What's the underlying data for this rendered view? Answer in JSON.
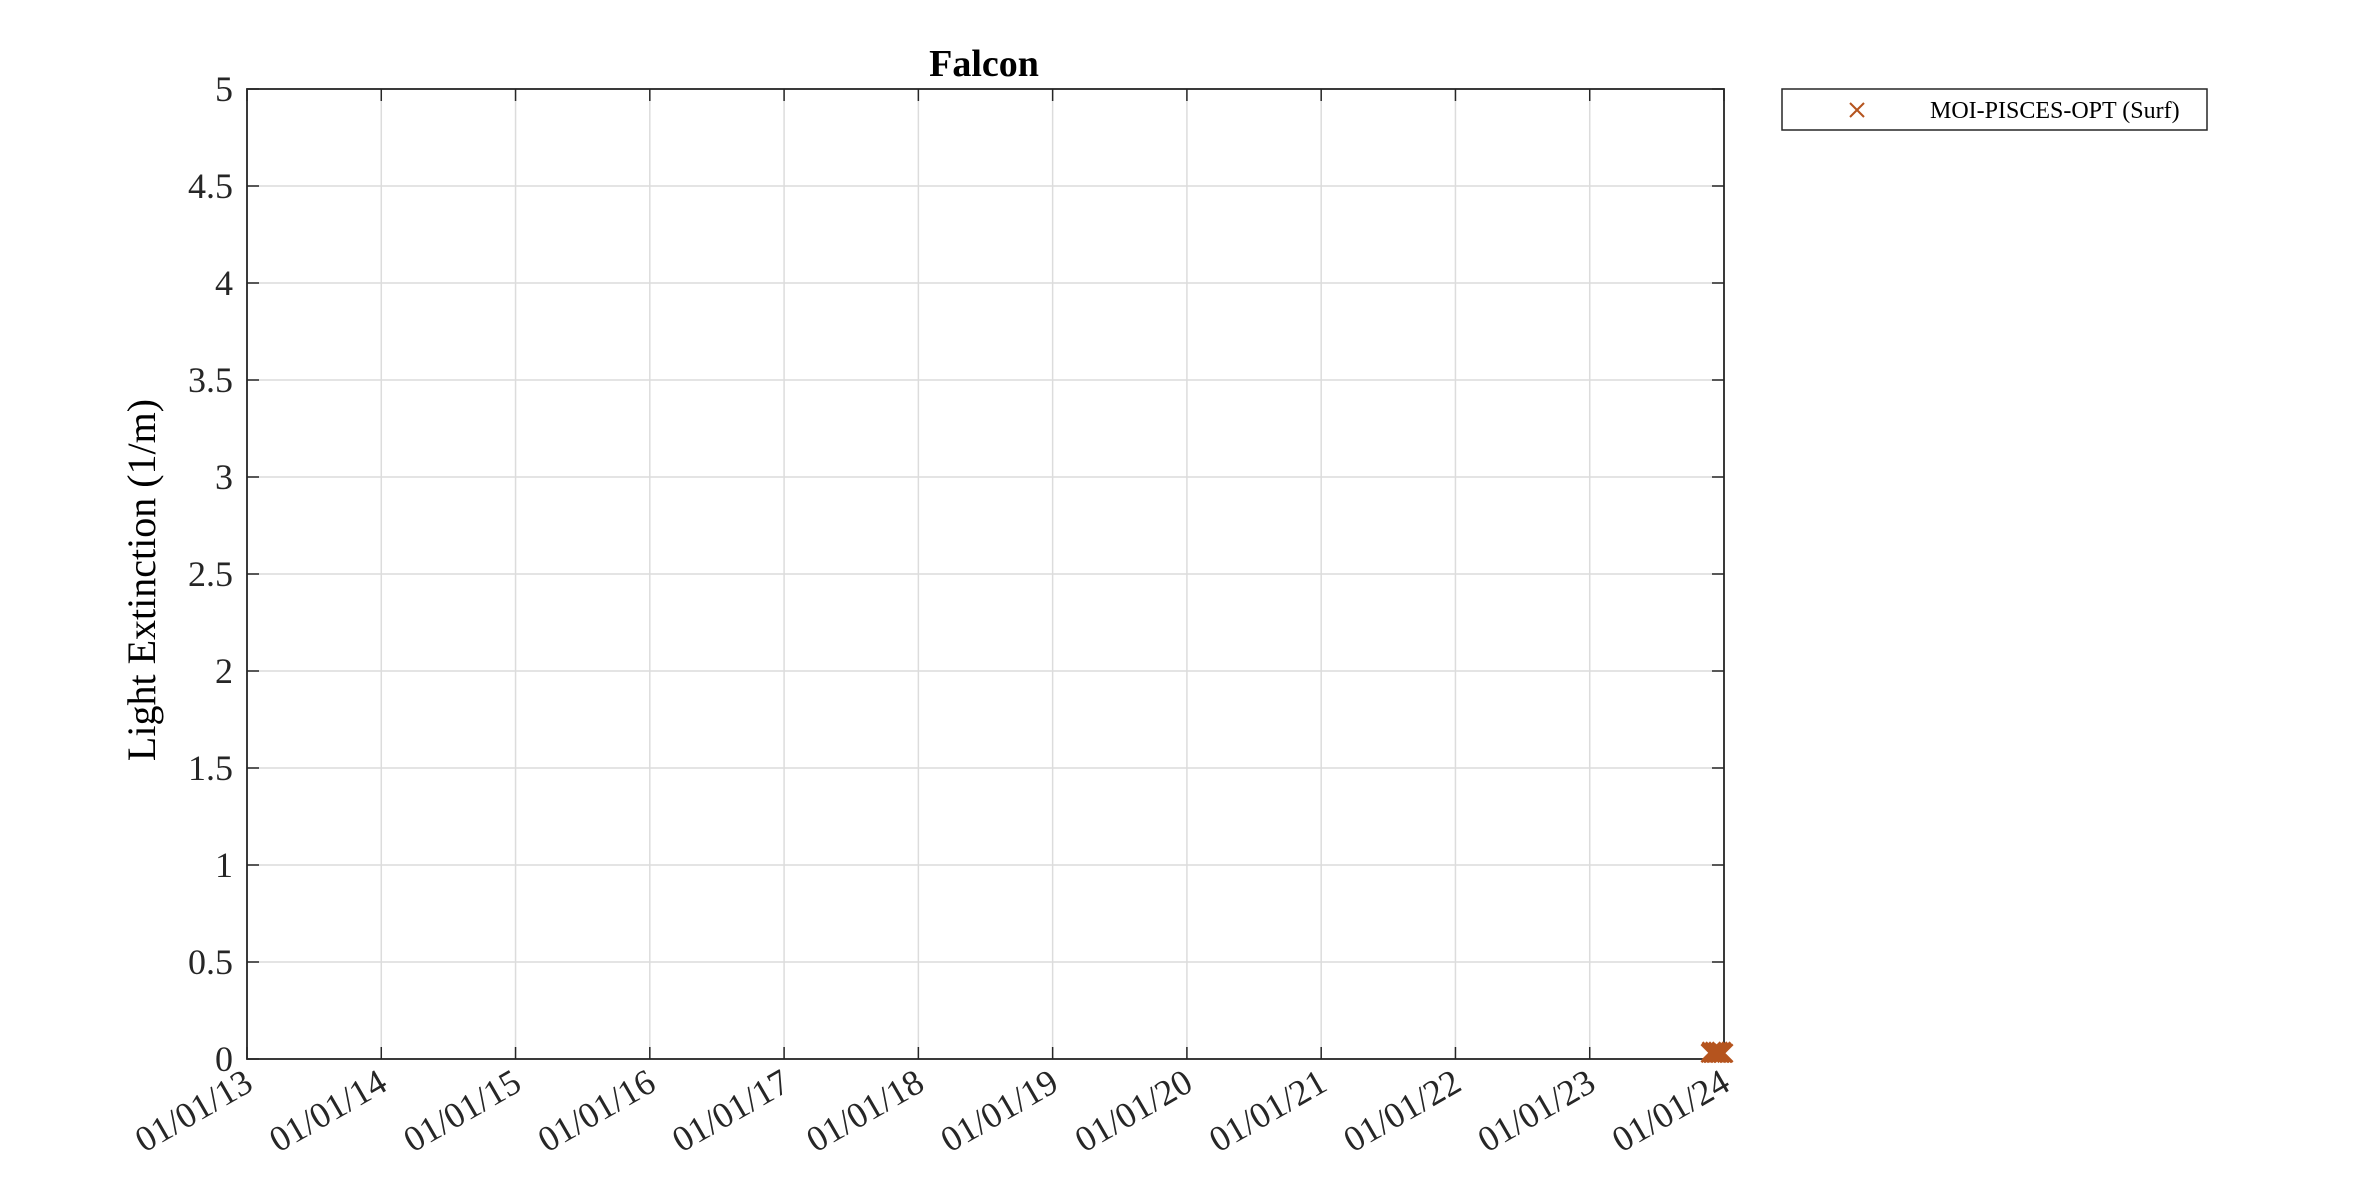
{
  "chart_data": {
    "type": "scatter",
    "title": "Falcon",
    "xlabel": "",
    "ylabel": "Light Extinction (1/m)",
    "x_axis_type": "date",
    "x_ticks": [
      "01/01/13",
      "01/01/14",
      "01/01/15",
      "01/01/16",
      "01/01/17",
      "01/01/18",
      "01/01/19",
      "01/01/20",
      "01/01/21",
      "01/01/22",
      "01/01/23",
      "01/01/24"
    ],
    "xlim": [
      "2013-01-01",
      "2024-01-01"
    ],
    "ylim": [
      0,
      5
    ],
    "y_ticks": [
      "0",
      "0.5",
      "1",
      "1.5",
      "2",
      "2.5",
      "3",
      "3.5",
      "4",
      "4.5",
      "5"
    ],
    "grid": true,
    "legend_position": "outside-top-right",
    "series": [
      {
        "name": "MOI-PISCES-OPT (Surf)",
        "marker": "x",
        "color": "#B5541E",
        "points": [
          {
            "x": "2023-11-25",
            "y": 0.03
          },
          {
            "x": "2023-11-28",
            "y": 0.04
          },
          {
            "x": "2023-12-01",
            "y": 0.03
          },
          {
            "x": "2023-12-04",
            "y": 0.03
          },
          {
            "x": "2023-12-07",
            "y": 0.04
          },
          {
            "x": "2023-12-10",
            "y": 0.03
          },
          {
            "x": "2023-12-13",
            "y": 0.03
          },
          {
            "x": "2023-12-16",
            "y": 0.04
          },
          {
            "x": "2023-12-19",
            "y": 0.03
          },
          {
            "x": "2023-12-22",
            "y": 0.03
          },
          {
            "x": "2023-12-25",
            "y": 0.04
          },
          {
            "x": "2023-12-28",
            "y": 0.03
          },
          {
            "x": "2023-12-31",
            "y": 0.03
          }
        ]
      }
    ]
  }
}
